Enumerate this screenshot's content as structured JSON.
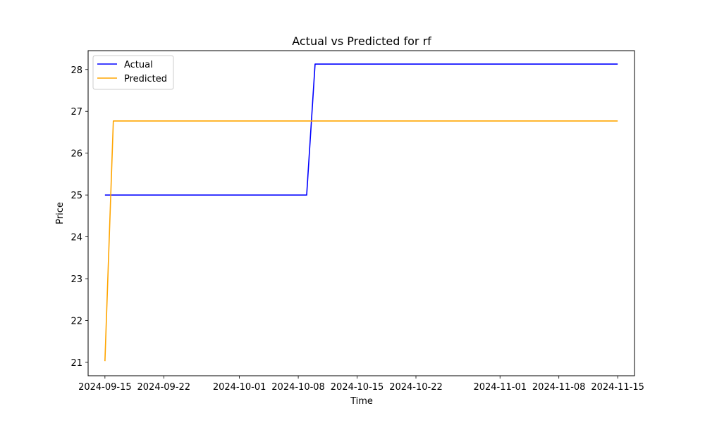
{
  "chart_data": {
    "type": "line",
    "title": "Actual vs Predicted for rf",
    "xlabel": "Time",
    "ylabel": "Price",
    "x_type": "date",
    "xlim": [
      "2024-09-13",
      "2024-11-17"
    ],
    "ylim": [
      20.68,
      28.45
    ],
    "x_ticks": [
      "2024-09-15",
      "2024-09-22",
      "2024-10-01",
      "2024-10-08",
      "2024-10-15",
      "2024-10-22",
      "2024-11-01",
      "2024-11-08",
      "2024-11-15"
    ],
    "y_ticks": [
      21,
      22,
      23,
      24,
      25,
      26,
      27,
      28
    ],
    "grid": false,
    "legend": "top-left",
    "series": [
      {
        "name": "Actual",
        "color": "#0000ff",
        "points": [
          {
            "x": "2024-09-15",
            "y": 25.0
          },
          {
            "x": "2024-10-09",
            "y": 25.0
          },
          {
            "x": "2024-10-10",
            "y": 28.13
          },
          {
            "x": "2024-11-15",
            "y": 28.13
          }
        ]
      },
      {
        "name": "Predicted",
        "color": "#ffa500",
        "points": [
          {
            "x": "2024-09-15",
            "y": 21.03
          },
          {
            "x": "2024-09-16",
            "y": 26.77
          },
          {
            "x": "2024-11-15",
            "y": 26.77
          }
        ]
      }
    ]
  }
}
